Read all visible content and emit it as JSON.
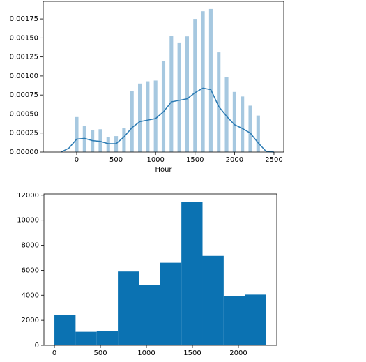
{
  "chart_data": [
    {
      "type": "distplot",
      "x": [
        0,
        100,
        200,
        300,
        400,
        500,
        600,
        700,
        800,
        900,
        1000,
        1100,
        1200,
        1300,
        1400,
        1500,
        1600,
        1700,
        1800,
        1900,
        2000,
        2100,
        2200,
        2300
      ],
      "values": [
        0.00046,
        0.00034,
        0.00029,
        0.0003,
        0.0002,
        0.00021,
        0.00032,
        0.0008,
        0.0009,
        0.00093,
        0.00094,
        0.0012,
        0.00153,
        0.00144,
        0.00152,
        0.00175,
        0.00185,
        0.00188,
        0.00131,
        0.00099,
        0.00079,
        0.00073,
        0.00061,
        0.00048
      ],
      "color": "#a6c8e0",
      "kde": {
        "x": [
          -200,
          -100,
          0,
          100,
          200,
          300,
          400,
          500,
          600,
          700,
          800,
          900,
          1000,
          1100,
          1200,
          1300,
          1400,
          1500,
          1600,
          1700,
          1800,
          1900,
          2000,
          2100,
          2200,
          2300,
          2400,
          2500
        ],
        "values": [
          0,
          5e-05,
          0.00017,
          0.00018,
          0.00015,
          0.00014,
          0.00011,
          0.00011,
          0.0002,
          0.00032,
          0.0004,
          0.00042,
          0.00044,
          0.00053,
          0.00066,
          0.00068,
          0.0007,
          0.00078,
          0.00084,
          0.00082,
          0.0006,
          0.00047,
          0.00036,
          0.00031,
          0.00025,
          0.00012,
          1e-05,
          0
        ],
        "color": "#2a7ab3"
      },
      "x_label": "Hour",
      "xlim": [
        -424,
        2624
      ],
      "ylim": [
        0,
        0.00198
      ],
      "xticks": [
        0,
        500,
        1000,
        1500,
        2000,
        2500
      ],
      "yticks": [
        {
          "value": 0,
          "label": "0.00000"
        },
        {
          "value": 0.00025,
          "label": "0.00025"
        },
        {
          "value": 0.0005,
          "label": "0.00050"
        },
        {
          "value": 0.00075,
          "label": "0.00075"
        },
        {
          "value": 0.001,
          "label": "0.00100"
        },
        {
          "value": 0.00125,
          "label": "0.00125"
        },
        {
          "value": 0.0015,
          "label": "0.00150"
        },
        {
          "value": 0.00175,
          "label": "0.00175"
        }
      ]
    },
    {
      "type": "histogram",
      "bins": [
        0,
        230,
        460,
        690,
        920,
        1150,
        1380,
        1610,
        1840,
        2070,
        2300
      ],
      "values": [
        2400,
        1080,
        1130,
        5900,
        4800,
        6600,
        11450,
        7150,
        3950,
        4050
      ],
      "color": "#0b72b2",
      "xlim": [
        -114,
        2417
      ],
      "ylim": [
        0,
        12100
      ],
      "xticks": [
        0,
        500,
        1000,
        1500,
        2000
      ],
      "yticks": [
        0,
        2000,
        4000,
        6000,
        8000,
        10000,
        12000
      ]
    }
  ]
}
